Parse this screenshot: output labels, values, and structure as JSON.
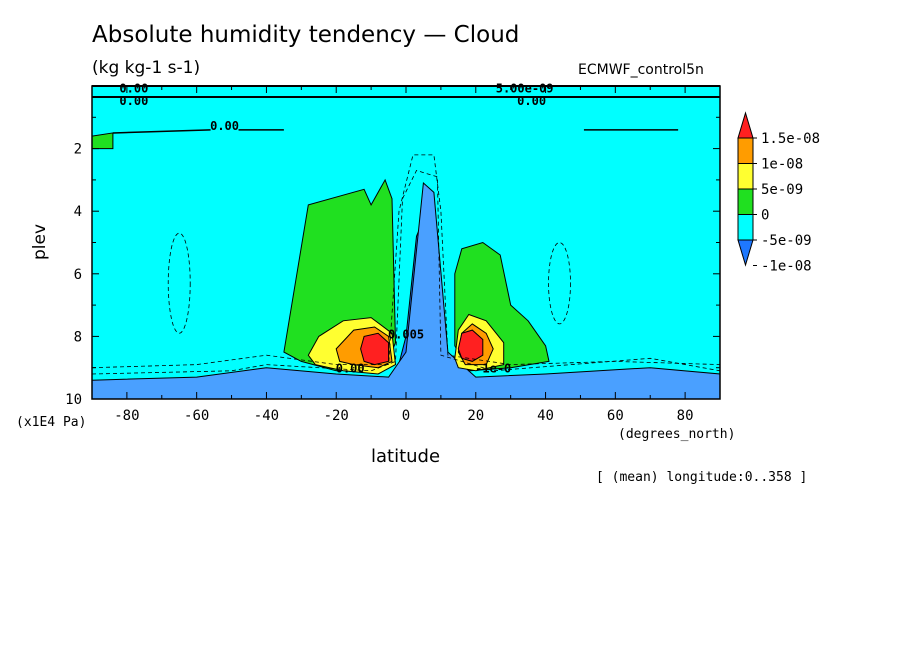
{
  "chart_data": {
    "type": "contour",
    "title": "Absolute humidity tendency — Cloud",
    "units": "(kg kg-1 s-1)",
    "source": "ECMWF_control5n",
    "xlabel": "latitude",
    "x_units": "(degrees_north)",
    "ylabel": "plev",
    "y_scale_note": "(x1E4 Pa)",
    "note": "[ (mean) longitude:0..358 ]",
    "xlim": [
      -90,
      90
    ],
    "ylim": [
      10,
      0
    ],
    "x_ticks": [
      -80,
      -60,
      -40,
      -20,
      0,
      20,
      40,
      60,
      80
    ],
    "y_ticks": [
      2,
      4,
      6,
      8,
      10
    ],
    "legend": {
      "position": "right",
      "levels": [
        "1.5e-08",
        "1e-08",
        "5e-09",
        "0",
        "-5e-09",
        "-1e-08"
      ],
      "colors": [
        "#ff2020",
        "#ff9c00",
        "#ffff30",
        "#20e020",
        "#00ffff",
        "#1e78ff"
      ]
    },
    "fill_colors": {
      "red": "#ff2020",
      "orange": "#ff9c00",
      "yellow": "#ffff30",
      "green": "#20e020",
      "cyan": "#00ffff",
      "blue": "#1e78ff",
      "medblue": "#4aa0ff"
    },
    "regions": [
      {
        "color": "green",
        "points": [
          [
            -35,
            8.5
          ],
          [
            -28,
            3.8
          ],
          [
            -12,
            3.3
          ],
          [
            -10,
            3.8
          ],
          [
            -6,
            3.0
          ],
          [
            -4,
            3.6
          ],
          [
            -3,
            8.2
          ],
          [
            -6,
            9.0
          ],
          [
            -20,
            9.1
          ],
          [
            -30,
            8.8
          ]
        ]
      },
      {
        "color": "yellow",
        "points": [
          [
            -28,
            8.6
          ],
          [
            -25,
            8.0
          ],
          [
            -18,
            7.5
          ],
          [
            -10,
            7.4
          ],
          [
            -4,
            7.9
          ],
          [
            -3,
            8.9
          ],
          [
            -8,
            9.2
          ],
          [
            -18,
            9.1
          ],
          [
            -26,
            8.9
          ]
        ]
      },
      {
        "color": "orange",
        "points": [
          [
            -20,
            8.4
          ],
          [
            -15,
            7.8
          ],
          [
            -9,
            7.7
          ],
          [
            -5,
            8.0
          ],
          [
            -4,
            8.8
          ],
          [
            -8,
            9.0
          ],
          [
            -15,
            8.9
          ],
          [
            -19,
            8.8
          ]
        ]
      },
      {
        "color": "red",
        "points": [
          [
            -13,
            8.4
          ],
          [
            -12,
            8.0
          ],
          [
            -8,
            7.9
          ],
          [
            -5,
            8.2
          ],
          [
            -5,
            8.8
          ],
          [
            -9,
            8.9
          ],
          [
            -12,
            8.8
          ]
        ]
      },
      {
        "color": "green",
        "points": [
          [
            14,
            8.3
          ],
          [
            14,
            6.0
          ],
          [
            16,
            5.2
          ],
          [
            22,
            5.0
          ],
          [
            27,
            5.4
          ],
          [
            30,
            7.0
          ],
          [
            35,
            7.5
          ],
          [
            40,
            8.3
          ],
          [
            41,
            8.8
          ],
          [
            30,
            9.0
          ],
          [
            18,
            9.1
          ]
        ]
      },
      {
        "color": "yellow",
        "points": [
          [
            14,
            8.7
          ],
          [
            15,
            7.8
          ],
          [
            18,
            7.3
          ],
          [
            23,
            7.5
          ],
          [
            28,
            8.2
          ],
          [
            28,
            8.9
          ],
          [
            20,
            9.1
          ],
          [
            15,
            9.0
          ]
        ]
      },
      {
        "color": "orange",
        "points": [
          [
            15,
            8.5
          ],
          [
            16,
            7.9
          ],
          [
            19,
            7.6
          ],
          [
            23,
            7.9
          ],
          [
            25,
            8.4
          ],
          [
            23,
            8.9
          ],
          [
            17,
            8.9
          ]
        ]
      },
      {
        "color": "red",
        "points": [
          [
            15,
            8.4
          ],
          [
            16,
            7.9
          ],
          [
            19,
            7.8
          ],
          [
            22,
            8.1
          ],
          [
            22,
            8.6
          ],
          [
            19,
            8.8
          ],
          [
            16,
            8.7
          ]
        ]
      },
      {
        "color": "green",
        "points": [
          [
            -90,
            1.6
          ],
          [
            -84,
            1.5
          ],
          [
            -84,
            2.0
          ],
          [
            -90,
            2.0
          ]
        ]
      },
      {
        "color": "medblue",
        "points": [
          [
            -90,
            9.4
          ],
          [
            -60,
            9.3
          ],
          [
            -40,
            9.0
          ],
          [
            -20,
            9.2
          ],
          [
            -5,
            9.3
          ],
          [
            0,
            8.5
          ],
          [
            5,
            3.1
          ],
          [
            8,
            3.4
          ],
          [
            12,
            8.5
          ],
          [
            20,
            9.3
          ],
          [
            40,
            9.2
          ],
          [
            70,
            9.0
          ],
          [
            90,
            9.2
          ],
          [
            90,
            10
          ],
          [
            -90,
            10
          ]
        ]
      },
      {
        "color": "blue",
        "points": [
          [
            -90,
            9.7
          ],
          [
            -52,
            9.6
          ],
          [
            -42,
            9.2
          ],
          [
            -30,
            9.3
          ],
          [
            -10,
            9.4
          ],
          [
            -3,
            9.3
          ],
          [
            0,
            8.0
          ],
          [
            3,
            4.8
          ],
          [
            6,
            4.0
          ],
          [
            8,
            4.5
          ],
          [
            10,
            8.0
          ],
          [
            14,
            9.4
          ],
          [
            40,
            9.3
          ],
          [
            75,
            9.3
          ],
          [
            76,
            10
          ],
          [
            -90,
            10
          ]
        ]
      }
    ],
    "contour_labels": [
      {
        "text": "0.00",
        "x": -78,
        "y": 0.05
      },
      {
        "text": "0.00",
        "x": -78,
        "y": 0.45
      },
      {
        "text": "0.00",
        "x": -52,
        "y": 1.25
      },
      {
        "text": "5.00e-09",
        "x": 34,
        "y": 0.05
      },
      {
        "text": "0.00",
        "x": 36,
        "y": 0.45
      },
      {
        "text": "0.00",
        "x": -16,
        "y": 9.0
      },
      {
        "text": "0.005",
        "x": 0,
        "y": 7.9
      },
      {
        "text": "-1e-0",
        "x": 25,
        "y": 9.0
      }
    ]
  }
}
